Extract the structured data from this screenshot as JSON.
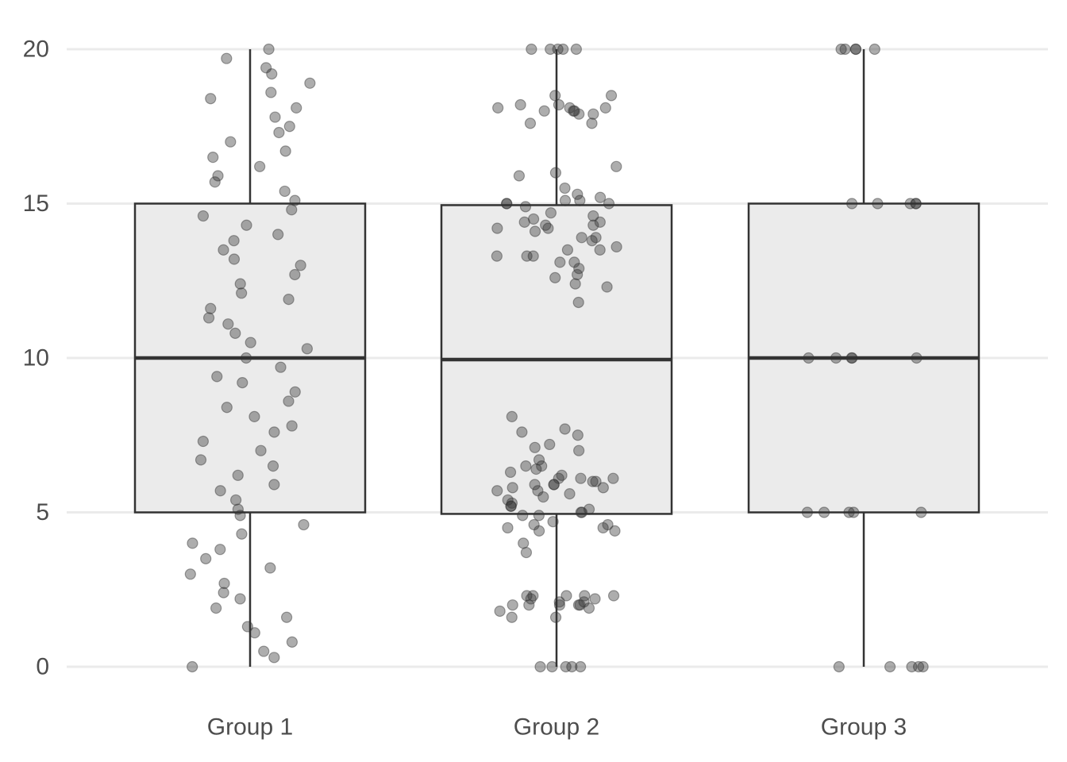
{
  "chart_data": {
    "type": "box",
    "title": "",
    "xlabel": "",
    "ylabel": "",
    "categories": [
      "Group 1",
      "Group 2",
      "Group 3"
    ],
    "ylim": [
      0,
      20
    ],
    "y_ticks": [
      0,
      5,
      10,
      15,
      20
    ],
    "grid": "horizontal",
    "legend": "none",
    "colors": {
      "box_fill": "#ebebeb",
      "box_line": "#333333",
      "point": "#333333",
      "grid": "#ebebeb",
      "tick_text": "#4d4d4d"
    },
    "boxes": [
      {
        "category": "Group 1",
        "min": 0,
        "q1": 5,
        "median": 10,
        "q3": 15,
        "max": 20
      },
      {
        "category": "Group 2",
        "min": 0,
        "q1": 4.95,
        "median": 9.95,
        "q3": 14.95,
        "max": 20
      },
      {
        "category": "Group 3",
        "min": 0,
        "q1": 5,
        "median": 10,
        "q3": 15,
        "max": 20
      }
    ],
    "points": [
      {
        "category": "Group 1",
        "values": [
          20,
          19.7,
          19.4,
          18.9,
          19.2,
          18.6,
          18.4,
          18.1,
          17.8,
          17.5,
          17.3,
          17.0,
          16.7,
          16.5,
          16.2,
          15.9,
          15.7,
          15.4,
          15.1,
          14.8,
          14.6,
          14.3,
          14.0,
          13.8,
          13.5,
          13.2,
          13.0,
          12.7,
          12.4,
          12.1,
          11.9,
          11.6,
          11.3,
          11.1,
          10.8,
          10.5,
          10.3,
          10.0,
          9.7,
          9.4,
          9.2,
          8.9,
          8.6,
          8.4,
          8.1,
          7.8,
          7.6,
          7.3,
          7.0,
          6.7,
          6.5,
          6.2,
          5.9,
          5.7,
          5.4,
          5.1,
          4.9,
          4.6,
          4.3,
          4.0,
          3.8,
          3.5,
          3.2,
          3.0,
          2.7,
          2.4,
          2.2,
          1.9,
          1.6,
          1.3,
          1.1,
          0.8,
          0.5,
          0.3,
          0
        ]
      },
      {
        "category": "Group 2",
        "values": [
          20,
          20,
          20,
          20,
          20,
          18.5,
          18.5,
          18.2,
          18.2,
          18.1,
          18.1,
          18.1,
          18.0,
          18.0,
          18.0,
          17.9,
          17.9,
          17.6,
          17.6,
          16.2,
          16.0,
          15.9,
          15.5,
          15.3,
          15.2,
          15.1,
          15.1,
          15.0,
          15.0,
          15.0,
          14.9,
          14.7,
          14.6,
          14.5,
          14.4,
          14.4,
          14.3,
          14.3,
          14.2,
          14.2,
          14.1,
          13.9,
          13.9,
          13.8,
          13.6,
          13.5,
          13.5,
          13.3,
          13.3,
          13.3,
          13.1,
          13.1,
          12.9,
          12.7,
          12.6,
          12.4,
          12.3,
          11.8,
          8.1,
          7.7,
          7.6,
          7.5,
          7.2,
          7.1,
          7.0,
          6.7,
          6.5,
          6.5,
          6.4,
          6.3,
          6.2,
          6.1,
          6.1,
          6.1,
          6.0,
          6.0,
          5.9,
          5.9,
          5.9,
          5.8,
          5.8,
          5.7,
          5.7,
          5.6,
          5.5,
          5.4,
          5.3,
          5.2,
          5.2,
          5.1,
          5.0,
          5.0,
          4.9,
          4.9,
          4.7,
          4.6,
          4.6,
          4.5,
          4.5,
          4.4,
          4.4,
          4.0,
          3.7,
          2.3,
          2.3,
          2.3,
          2.3,
          2.3,
          2.2,
          2.2,
          2.1,
          2.1,
          2.0,
          2.0,
          2.0,
          2.0,
          2.0,
          1.9,
          1.8,
          1.6,
          1.6,
          0,
          0,
          0,
          0,
          0
        ]
      },
      {
        "category": "Group 3",
        "values": [
          20,
          20,
          20,
          20,
          20,
          15,
          15,
          15,
          15,
          15,
          10,
          10,
          10,
          10,
          10,
          5,
          5,
          5,
          5,
          5,
          0,
          0,
          0,
          0,
          0
        ]
      }
    ]
  }
}
